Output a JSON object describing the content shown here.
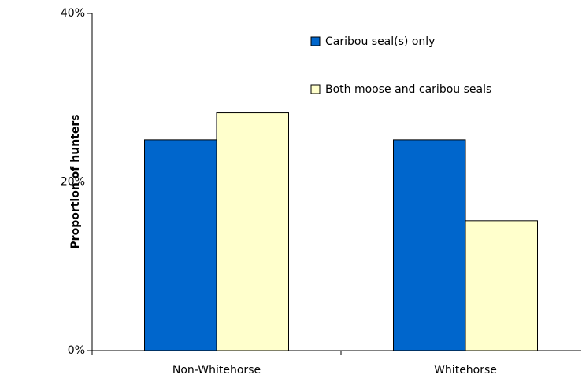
{
  "chart_data": {
    "type": "bar",
    "y_label": "Proportion of hunters",
    "categories": [
      "Non-Whitehorse",
      "Whitehorse"
    ],
    "series": [
      {
        "name": "Caribou seal(s) only",
        "color": "#0066cc",
        "values": [
          25,
          25
        ]
      },
      {
        "name": "Both moose and caribou seals",
        "color": "#ffffcc",
        "values": [
          28.2,
          15.4
        ]
      }
    ],
    "ylim": [
      0,
      40
    ],
    "yticks": [
      {
        "value": 0,
        "label": "0%"
      },
      {
        "value": 20,
        "label": "20%"
      },
      {
        "value": 40,
        "label": "40%"
      }
    ],
    "legend": "top-right"
  }
}
